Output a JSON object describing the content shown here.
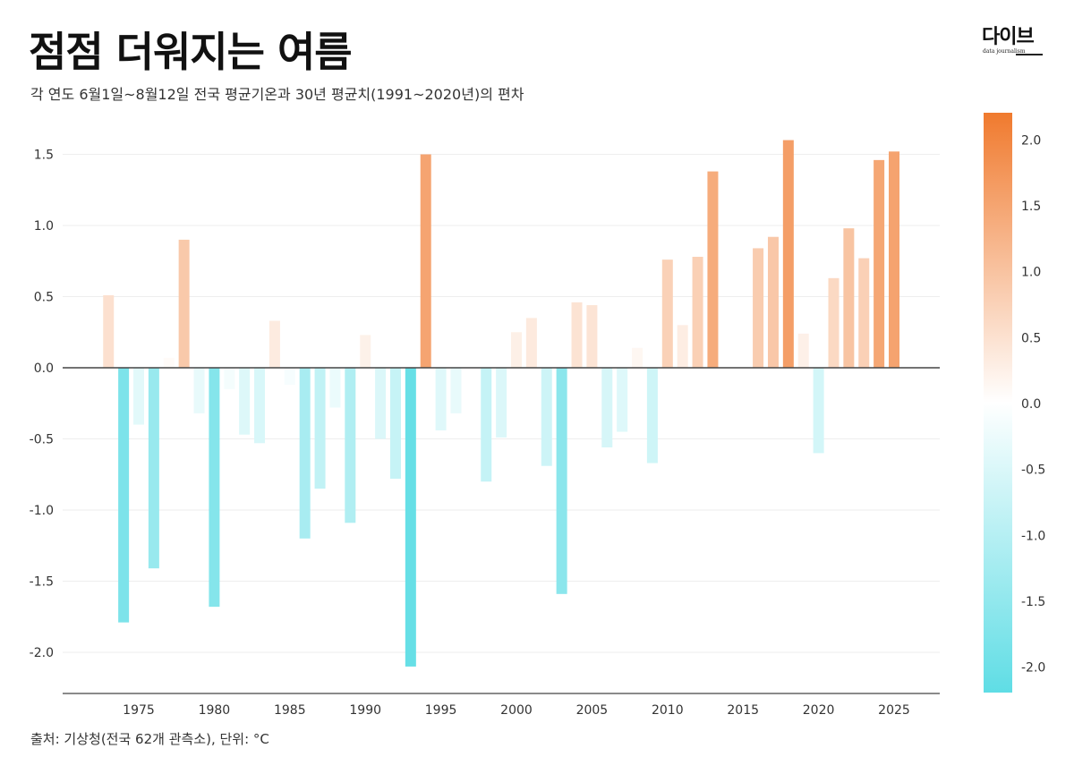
{
  "header": {
    "title": "점점 더워지는 여름",
    "subtitle": "각 연도 6월1일~8월12일 전국 평균기온과 30년 평균치(1991~2020년)의 편차"
  },
  "logo": {
    "name": "다이브",
    "tagline": "data journalism"
  },
  "footer": {
    "source": "출처: 기상청(전국 62개 관측소), 단위: °C"
  },
  "colors": {
    "warm_max": "#f07a2e",
    "cool_max": "#5fdde5",
    "neutral": "#ffffff",
    "zero_line": "#444444",
    "gridline": "#eeeeee",
    "axis_text": "#333333"
  },
  "chart_data": {
    "type": "bar",
    "title": "점점 더워지는 여름",
    "subtitle": "각 연도 6월1일~8월12일 전국 평균기온과 30년 평균치(1991~2020년)의 편차",
    "xlabel": "",
    "ylabel": "",
    "unit": "°C",
    "grid": true,
    "ylim": [
      -2.3,
      1.75
    ],
    "yticks": [
      -2.0,
      -1.5,
      -1.0,
      -0.5,
      0.0,
      0.5,
      1.0,
      1.5
    ],
    "ytick_labels": [
      "-2.0",
      "-1.5",
      "-1.0",
      "-0.5",
      "0.0",
      "0.5",
      "1.0",
      "1.5"
    ],
    "xlim": [
      1970.5,
      2028.5
    ],
    "xticks": [
      1975,
      1980,
      1985,
      1990,
      1995,
      2000,
      2005,
      2010,
      2015,
      2020,
      2025
    ],
    "xtick_labels": [
      "1975",
      "1980",
      "1985",
      "1990",
      "1995",
      "2000",
      "2005",
      "2010",
      "2015",
      "2020",
      "2025"
    ],
    "x": [
      1973,
      1974,
      1975,
      1976,
      1977,
      1978,
      1979,
      1980,
      1981,
      1982,
      1983,
      1984,
      1985,
      1986,
      1987,
      1988,
      1989,
      1990,
      1991,
      1992,
      1993,
      1994,
      1995,
      1996,
      1997,
      1998,
      1999,
      2000,
      2001,
      2002,
      2003,
      2004,
      2005,
      2006,
      2007,
      2008,
      2009,
      2010,
      2011,
      2012,
      2013,
      2014,
      2015,
      2016,
      2017,
      2018,
      2019,
      2020,
      2021,
      2022,
      2023,
      2024,
      2025
    ],
    "values": [
      0.51,
      -1.79,
      -0.4,
      -1.41,
      0.07,
      0.9,
      -0.32,
      -1.68,
      -0.15,
      -0.47,
      -0.53,
      0.33,
      -0.12,
      -1.2,
      -0.85,
      -0.28,
      -1.09,
      0.23,
      -0.5,
      -0.78,
      -2.1,
      1.5,
      -0.44,
      -0.32,
      0.0,
      -0.8,
      -0.49,
      0.25,
      0.35,
      -0.69,
      -1.59,
      0.46,
      0.44,
      -0.56,
      -0.45,
      0.14,
      -0.67,
      0.76,
      0.3,
      0.78,
      1.38,
      0.0,
      0.0,
      0.84,
      0.92,
      1.6,
      0.24,
      -0.6,
      0.63,
      0.98,
      0.77,
      1.46,
      1.52
    ],
    "colorbar": {
      "range": [
        -2.2,
        2.2
      ],
      "ticks": [
        2.0,
        1.5,
        1.0,
        0.5,
        0.0,
        -0.5,
        -1.0,
        -1.5,
        -2.0
      ],
      "tick_labels": [
        "2.0",
        "1.5",
        "1.0",
        "0.5",
        "0.0",
        "-0.5",
        "-1.0",
        "-1.5",
        "-2.0"
      ],
      "placement": "right"
    },
    "legend": "colorbar-right"
  }
}
